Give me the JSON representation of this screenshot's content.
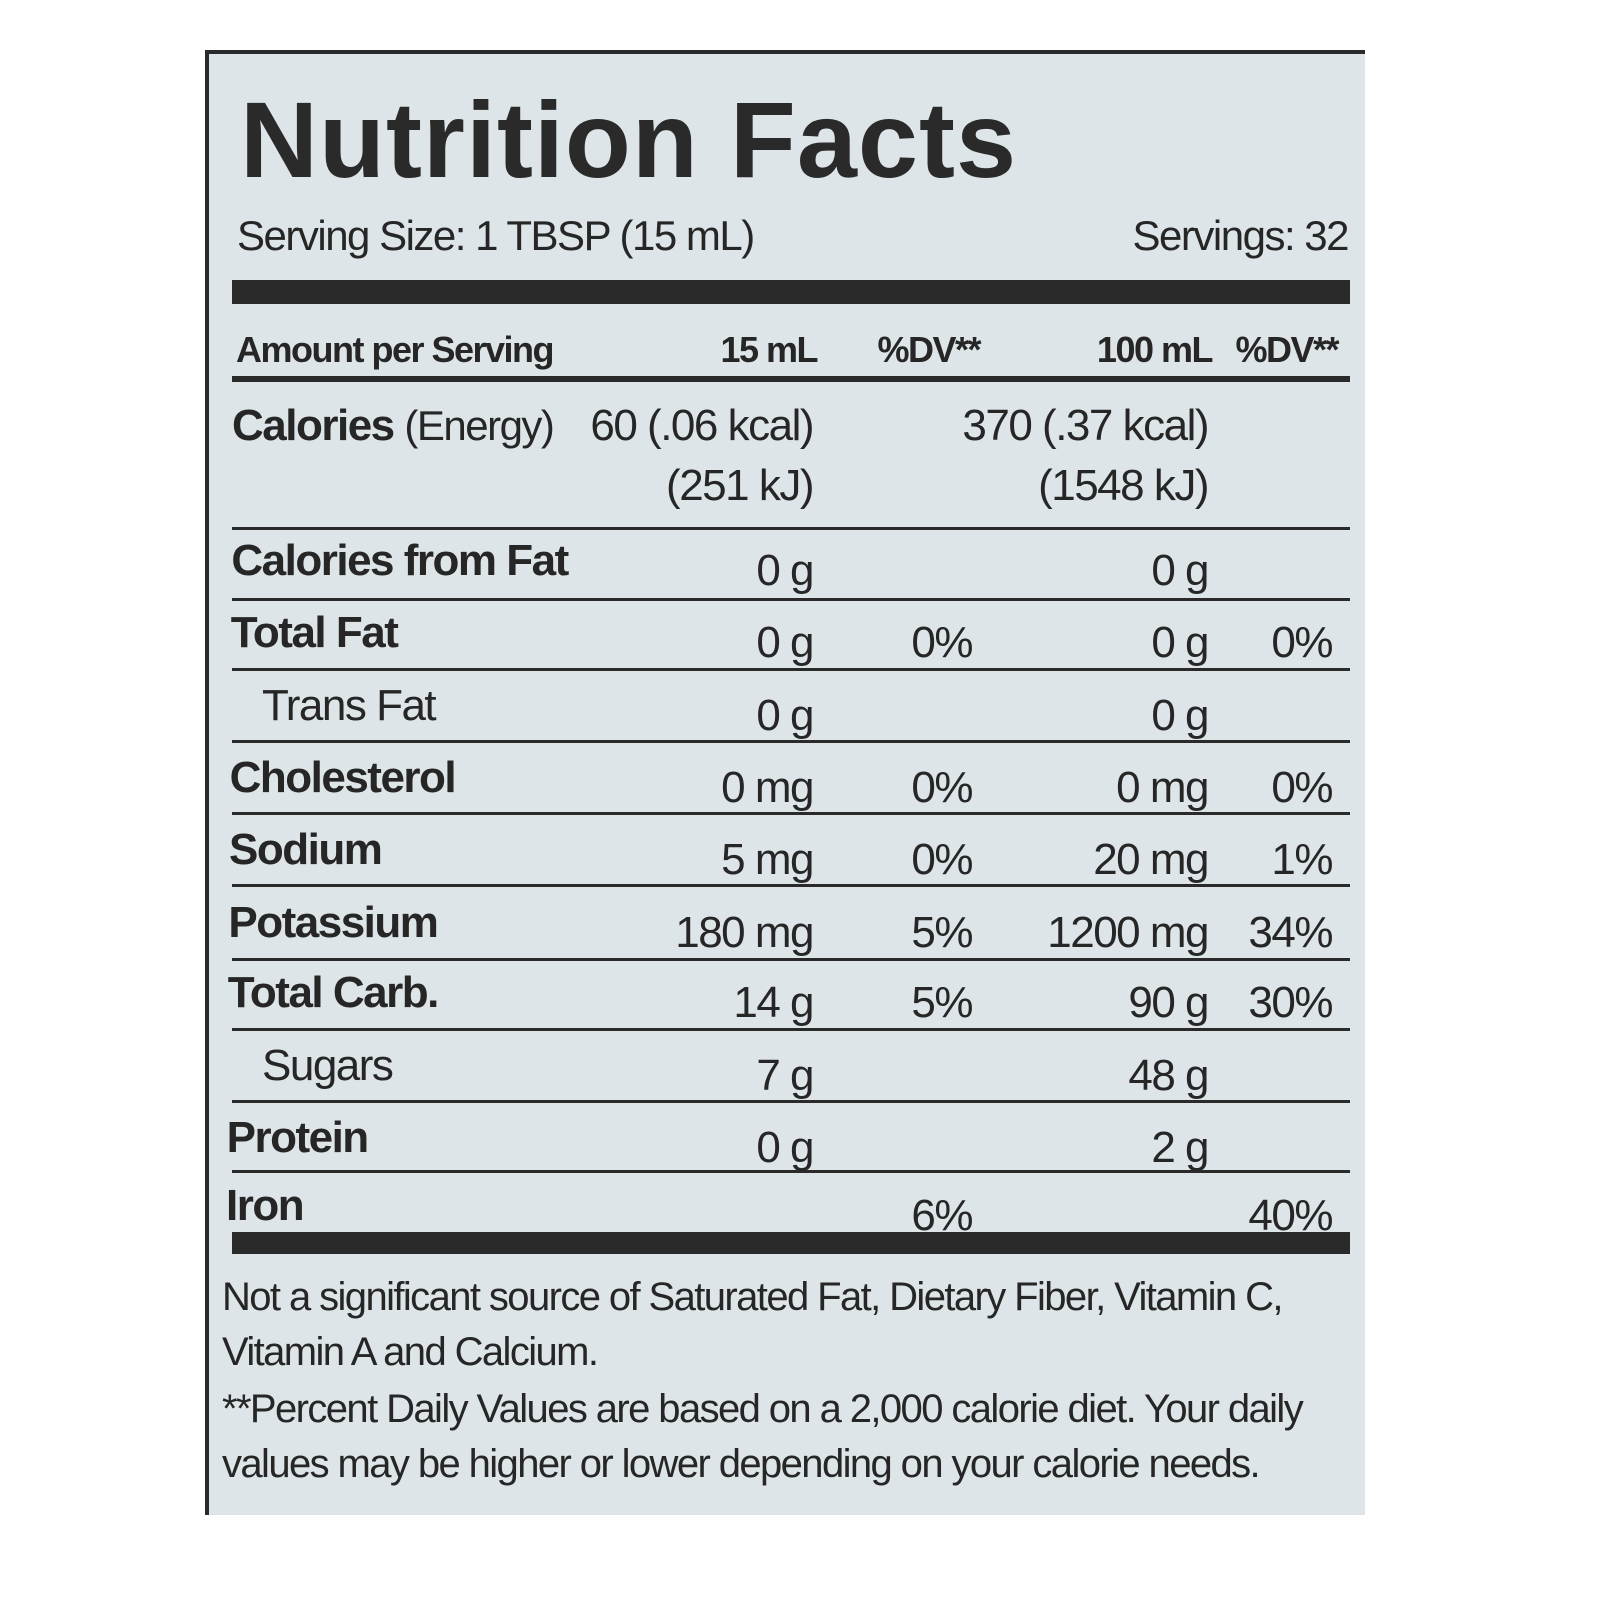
{
  "title": "Nutrition Facts",
  "serving_size": "Serving Size: 1 TBSP (15 mL)",
  "servings": "Servings: 32",
  "header": {
    "label": "Amount per Serving",
    "col1": "15 mL",
    "col2": "%DV**",
    "col3": "100 mL",
    "col4": "%DV**"
  },
  "rows": [
    {
      "label": "Calories",
      "qualifier": "(Energy)",
      "per15": [
        "60 (.06 kcal)",
        "(251 kJ)"
      ],
      "per100": [
        "370 (.37 kcal)",
        "(1548 kJ)"
      ]
    },
    {
      "label": "Calories from Fat",
      "per15": "0 g",
      "per100": "0 g"
    },
    {
      "label": "Total Fat",
      "per15": "0 g",
      "dv15": "0%",
      "per100": "0 g",
      "dv100": "0%"
    },
    {
      "label": "Trans Fat",
      "indent": true,
      "per15": "0 g",
      "per100": "0 g"
    },
    {
      "label": "Cholesterol",
      "per15": "0 mg",
      "dv15": "0%",
      "per100": "0 mg",
      "dv100": "0%"
    },
    {
      "label": "Sodium",
      "per15": "5 mg",
      "dv15": "0%",
      "per100": "20 mg",
      "dv100": "1%"
    },
    {
      "label": "Potassium",
      "per15": "180 mg",
      "dv15": "5%",
      "per100": "1200 mg",
      "dv100": "34%"
    },
    {
      "label": "Total Carb.",
      "per15": "14 g",
      "dv15": "5%",
      "per100": "90 g",
      "dv100": "30%"
    },
    {
      "label": "Sugars",
      "indent": true,
      "per15": "7 g",
      "per100": "48 g"
    },
    {
      "label": "Protein",
      "per15": "0 g",
      "per100": "2 g"
    },
    {
      "label": "Iron",
      "dv15": "6%",
      "dv100": "40%"
    }
  ],
  "notes": [
    "Not a significant source of Saturated Fat, Dietary Fiber, Vitamin C, Vitamin A and Calcium.",
    "**Percent Daily Values are based on a 2,000 calorie diet. Your daily values may be higher or lower depending on your calorie needs."
  ]
}
